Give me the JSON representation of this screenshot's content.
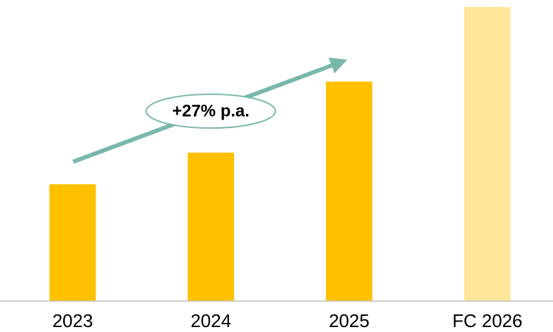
{
  "chart_data": {
    "type": "bar",
    "categories": [
      "2023",
      "2024",
      "2025",
      "FC 2026"
    ],
    "values": [
      166,
      211,
      312,
      418
    ],
    "colors": [
      "#ffc000",
      "#ffc000",
      "#ffc000",
      "#ffe699"
    ],
    "ylim": [
      0,
      420
    ],
    "annotation": "+27% p.a."
  }
}
